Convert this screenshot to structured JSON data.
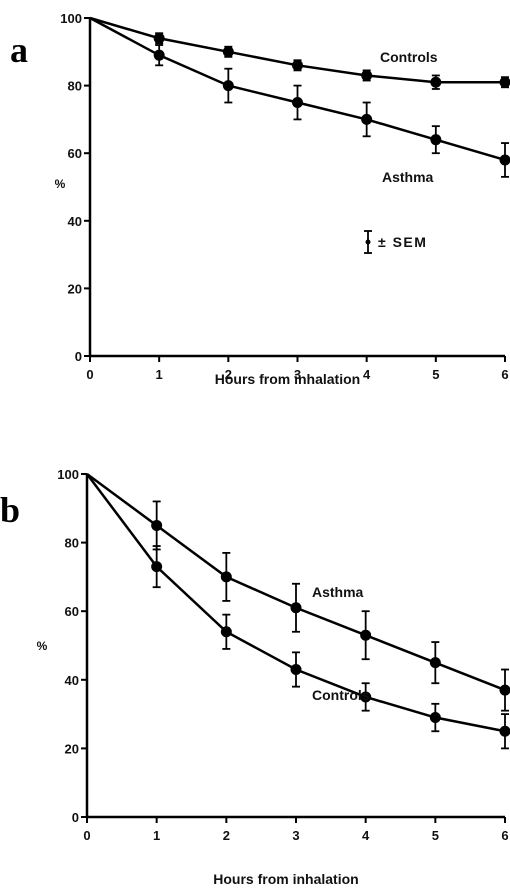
{
  "chart_data": [
    {
      "type": "line",
      "panel": "a",
      "xlabel": "Hours from inhalation",
      "ylabel": "%",
      "xlim": [
        0,
        6
      ],
      "ylim": [
        0,
        100
      ],
      "x_ticks": [
        "0",
        "1",
        "2",
        "3",
        "4",
        "5",
        "6"
      ],
      "y_ticks": [
        "0",
        "20",
        "40",
        "60",
        "80",
        "100"
      ],
      "x": [
        0,
        1,
        2,
        3,
        4,
        5,
        6
      ],
      "series": [
        {
          "name": "Controls",
          "values": [
            100,
            94,
            90,
            86,
            83,
            81,
            81
          ],
          "sem": [
            0,
            1.5,
            1.5,
            1.5,
            1.5,
            2,
            1.5
          ]
        },
        {
          "name": "Asthma",
          "values": [
            100,
            89,
            80,
            75,
            70,
            64,
            58
          ],
          "sem": [
            0,
            3,
            5,
            5,
            5,
            4,
            5
          ]
        }
      ],
      "legend_text": "± SEM"
    },
    {
      "type": "line",
      "panel": "b",
      "xlabel": "Hours from inhalation",
      "ylabel": "%",
      "xlim": [
        0,
        6
      ],
      "ylim": [
        0,
        100
      ],
      "x_ticks": [
        "0",
        "1",
        "2",
        "3",
        "4",
        "5",
        "6"
      ],
      "y_ticks": [
        "0",
        "20",
        "40",
        "60",
        "80",
        "100"
      ],
      "x": [
        0,
        1,
        2,
        3,
        4,
        5,
        6
      ],
      "series": [
        {
          "name": "Asthma",
          "values": [
            100,
            85,
            70,
            61,
            53,
            45,
            37
          ],
          "sem": [
            0,
            7,
            7,
            7,
            7,
            6,
            6
          ]
        },
        {
          "name": "Controls",
          "values": [
            100,
            73,
            54,
            43,
            35,
            29,
            25
          ],
          "sem": [
            0,
            6,
            5,
            5,
            4,
            4,
            5
          ]
        }
      ]
    }
  ]
}
